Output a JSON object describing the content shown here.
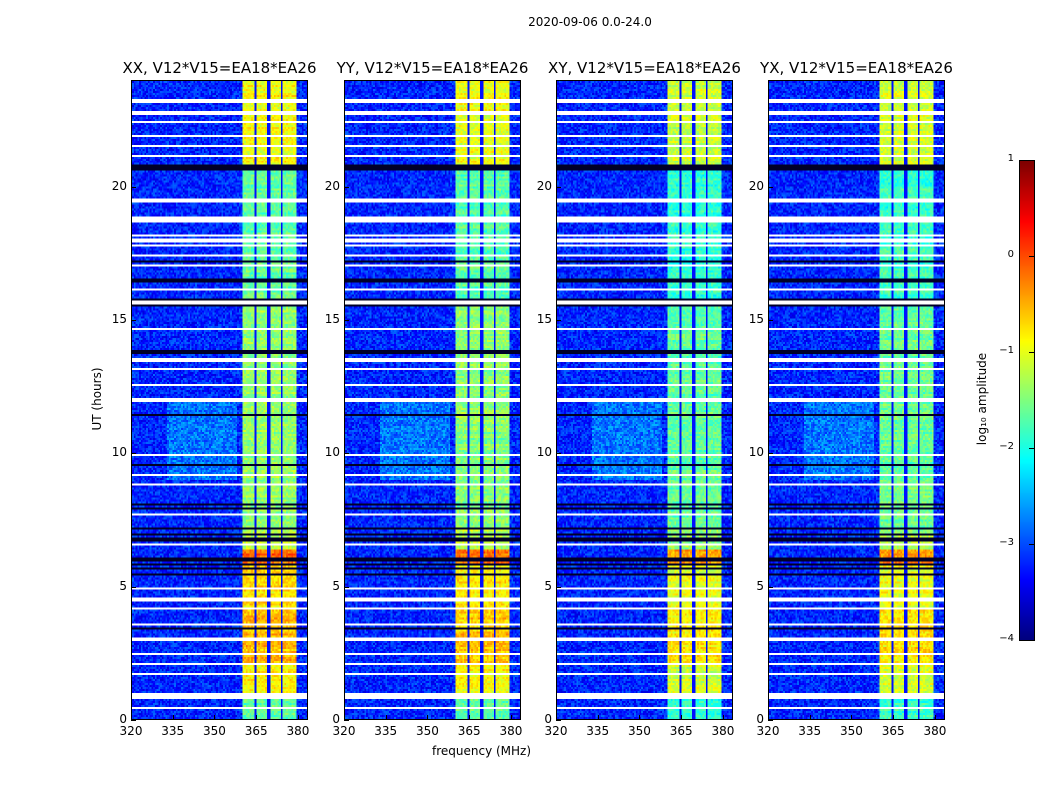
{
  "chart_data": {
    "type": "heatmap",
    "suptitle": "2020-09-06 0.0-24.0",
    "panels": [
      {
        "title": "XX, V12*V15=EA18*EA26",
        "band_offset": 0.25
      },
      {
        "title": "YY, V12*V15=EA18*EA26",
        "band_offset": 0.2
      },
      {
        "title": "XY, V12*V15=EA18*EA26",
        "band_offset": 0.0
      },
      {
        "title": "YX, V12*V15=EA18*EA26",
        "band_offset": 0.05
      }
    ],
    "xlabel": "frequency (MHz)",
    "ylabel": "UT (hours)",
    "xlim": [
      320,
      383.6
    ],
    "ylim": [
      0,
      24
    ],
    "xticks": [
      "320",
      "335",
      "350",
      "365",
      "380"
    ],
    "xtick_values": [
      320,
      335,
      350,
      365,
      380
    ],
    "yticks": [
      "0",
      "5",
      "10",
      "15",
      "20"
    ],
    "ytick_values": [
      0,
      5,
      10,
      15,
      20
    ],
    "colormap": "jet",
    "colorbar": {
      "label": "log₁₀ amplitude",
      "range": [
        -4,
        1
      ],
      "ticks": [
        "1",
        "0",
        "−1",
        "−2",
        "−3",
        "−4"
      ],
      "tick_values": [
        1,
        0,
        -1,
        -2,
        -3,
        -4
      ]
    },
    "background_level": -3.2,
    "rfi_band_mhz": [
      360.3,
      379.7
    ],
    "band_gaps_mhz": [
      365.0,
      369.6,
      374.6
    ],
    "band_levels_by_hour": [
      {
        "from": 0,
        "to": 0.9,
        "level": -1.9
      },
      {
        "from": 0.9,
        "to": 2.0,
        "level": -1.1
      },
      {
        "from": 2.0,
        "to": 4.2,
        "level": -0.8
      },
      {
        "from": 4.2,
        "to": 5.8,
        "level": -1.0
      },
      {
        "from": 5.8,
        "to": 6.4,
        "level": -0.4
      },
      {
        "from": 6.4,
        "to": 7.2,
        "level": -1.4
      },
      {
        "from": 7.2,
        "to": 15.6,
        "level": -1.65
      },
      {
        "from": 15.6,
        "to": 20.8,
        "level": -1.9
      },
      {
        "from": 20.8,
        "to": 24,
        "level": -1.15
      }
    ],
    "flagged_rows_hours": [
      23.25,
      22.8,
      22.43,
      21.94,
      21.56,
      21.19,
      19.5,
      18.19,
      18.0,
      17.81,
      17.44,
      17.06,
      16.13,
      14.63,
      13.5,
      13.13,
      12.56,
      12.0,
      9.94,
      9.19,
      8.81,
      7.69,
      6.56,
      4.88,
      4.5,
      4.13,
      3.56,
      3.0,
      2.44,
      2.06,
      1.69,
      0.38
    ],
    "flagged_blocks_hours": [
      [
        18.68,
        18.85
      ],
      [
        0.82,
        0.95
      ],
      [
        15.62,
        15.7
      ]
    ],
    "dropout_rows_hours": [
      20.81,
      20.7,
      17.18,
      16.5,
      15.75,
      15.56,
      13.8,
      11.44,
      9.56,
      8.06,
      7.88,
      7.13,
      6.94,
      6.75,
      6.0,
      5.81,
      5.63,
      5.44,
      3.38
    ]
  },
  "colors": {
    "axis": "#000000",
    "flag": "#ffffff"
  }
}
